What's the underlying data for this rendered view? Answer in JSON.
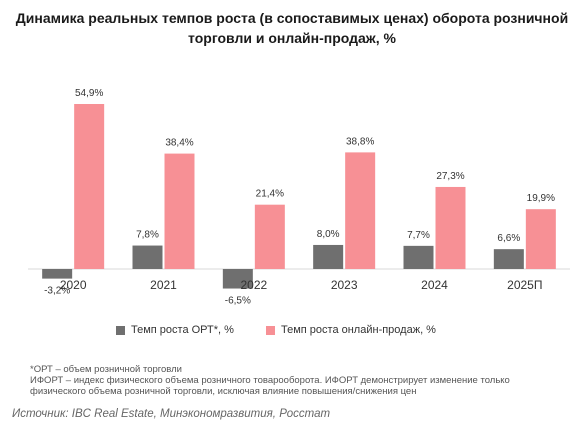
{
  "chart_data": {
    "type": "bar",
    "title_lines": [
      "Динамика реальных темпов роста (в сопоставимых ценах) оборота розничной",
      "торговли и онлайн-продаж, %"
    ],
    "categories": [
      "2020",
      "2021",
      "2022",
      "2023",
      "2024",
      "2025П"
    ],
    "series": [
      {
        "name": "Темп роста ОРТ*, %",
        "color": "#6f6f6f",
        "values": [
          -3.2,
          7.8,
          -6.5,
          8.0,
          7.7,
          6.6
        ],
        "labels": [
          "-3,2%",
          "7,8%",
          "-6,5%",
          "8,0%",
          "7,7%",
          "6,6%"
        ]
      },
      {
        "name": "Темп роста онлайн-продаж, %",
        "color": "#f79095",
        "values": [
          54.9,
          38.4,
          21.4,
          38.8,
          27.3,
          19.9
        ],
        "labels": [
          "54,9%",
          "38,4%",
          "21,4%",
          "38,8%",
          "27,3%",
          "19,9%"
        ]
      }
    ],
    "ylim": [
      -6.5,
      54.9
    ],
    "grid": false,
    "legend": "bottom"
  },
  "notes": [
    "*ОРТ – объем розничной торговли",
    "ИФОРТ – индекс физического объема розничного товарооборота. ИФОРТ демонстрирует изменение только",
    "физического объема розничной торговли, исключая влияние повышения/снижения цен"
  ],
  "source": "Источник: IBC Real Estate, Минэкономразвития, Росстат"
}
